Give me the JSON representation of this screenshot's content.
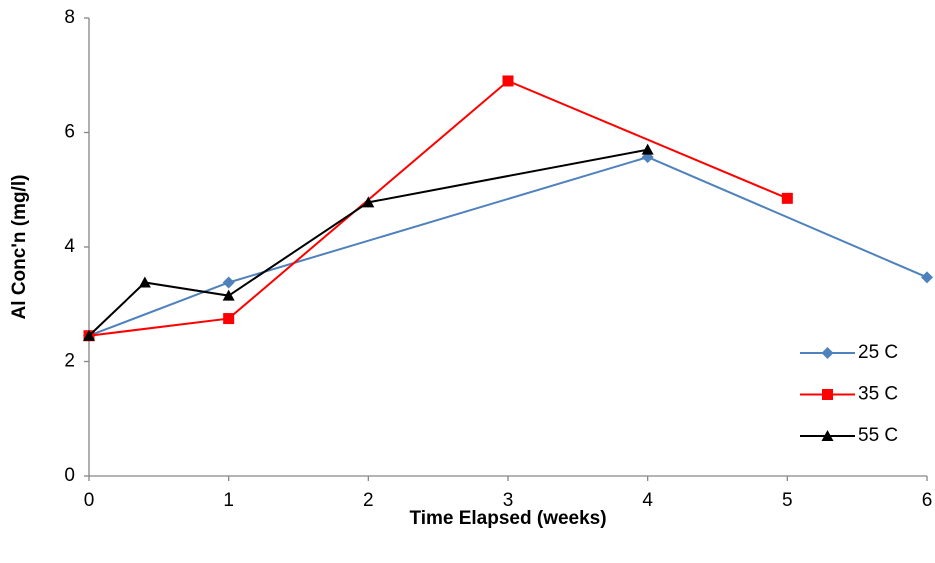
{
  "chart_data": {
    "type": "line",
    "xlabel": "Time Elapsed (weeks)",
    "ylabel": "Al Conc'n (mg/l)",
    "xlim": [
      0,
      6
    ],
    "xticks": [
      0,
      1,
      2,
      3,
      4,
      5,
      6
    ],
    "ylim": [
      0,
      8
    ],
    "yticks": [
      0,
      2,
      4,
      6,
      8
    ],
    "grid": false,
    "legend": "lower right",
    "series": [
      {
        "name": "25 C",
        "color": "#4f81bd",
        "marker": "diamond",
        "x": [
          0,
          1,
          4,
          6
        ],
        "values": [
          2.45,
          3.38,
          5.57,
          3.47
        ]
      },
      {
        "name": "35 C",
        "color": "#ff0000",
        "marker": "square",
        "x": [
          0,
          1,
          3,
          5
        ],
        "values": [
          2.45,
          2.75,
          6.9,
          4.85
        ]
      },
      {
        "name": "55 C",
        "color": "#000000",
        "marker": "triangle",
        "x": [
          0,
          0.4,
          1,
          2,
          4
        ],
        "values": [
          2.45,
          3.38,
          3.15,
          4.78,
          5.7
        ]
      }
    ]
  }
}
